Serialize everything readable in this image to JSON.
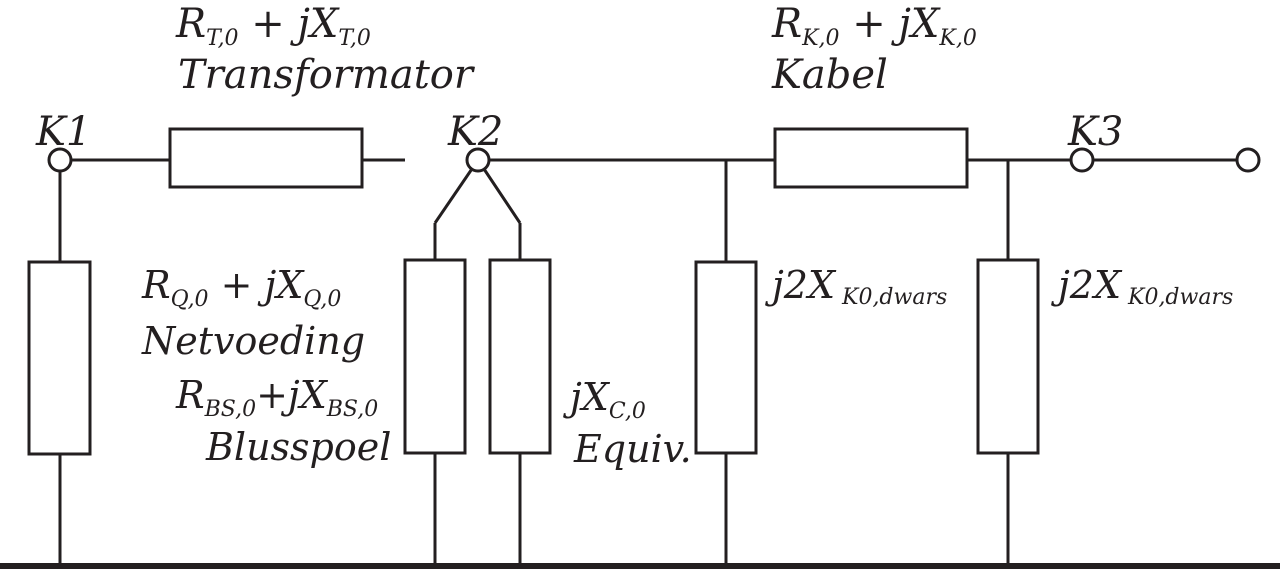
{
  "nodes": {
    "k1": "K1",
    "k2": "K2",
    "k3": "K3"
  },
  "transformer": {
    "r": "R",
    "r_sub": "T,0",
    "plus_jx": " + jX",
    "x_sub": "T,0",
    "name": "Transformator"
  },
  "cable": {
    "r": "R",
    "r_sub": "K,0",
    "plus_jx": " + jX",
    "x_sub": "K,0",
    "name": "Kabel"
  },
  "supply": {
    "r": "R",
    "r_sub": "Q,0",
    "plus_jx": " + jX",
    "x_sub": "Q,0",
    "name": "Netvoeding"
  },
  "coil": {
    "r": "R",
    "r_sub": "BS,0",
    "plus_jx": "+jX",
    "x_sub": "BS,0",
    "name": "Blusspoel"
  },
  "capacitance": {
    "jx": "jX",
    "x_sub": "C,0",
    "name": "Equiv."
  },
  "shunt1": {
    "main": "j2X",
    "sub": " K0,dwars"
  },
  "shunt2": {
    "main": "j2X",
    "sub": " K0,dwars"
  }
}
